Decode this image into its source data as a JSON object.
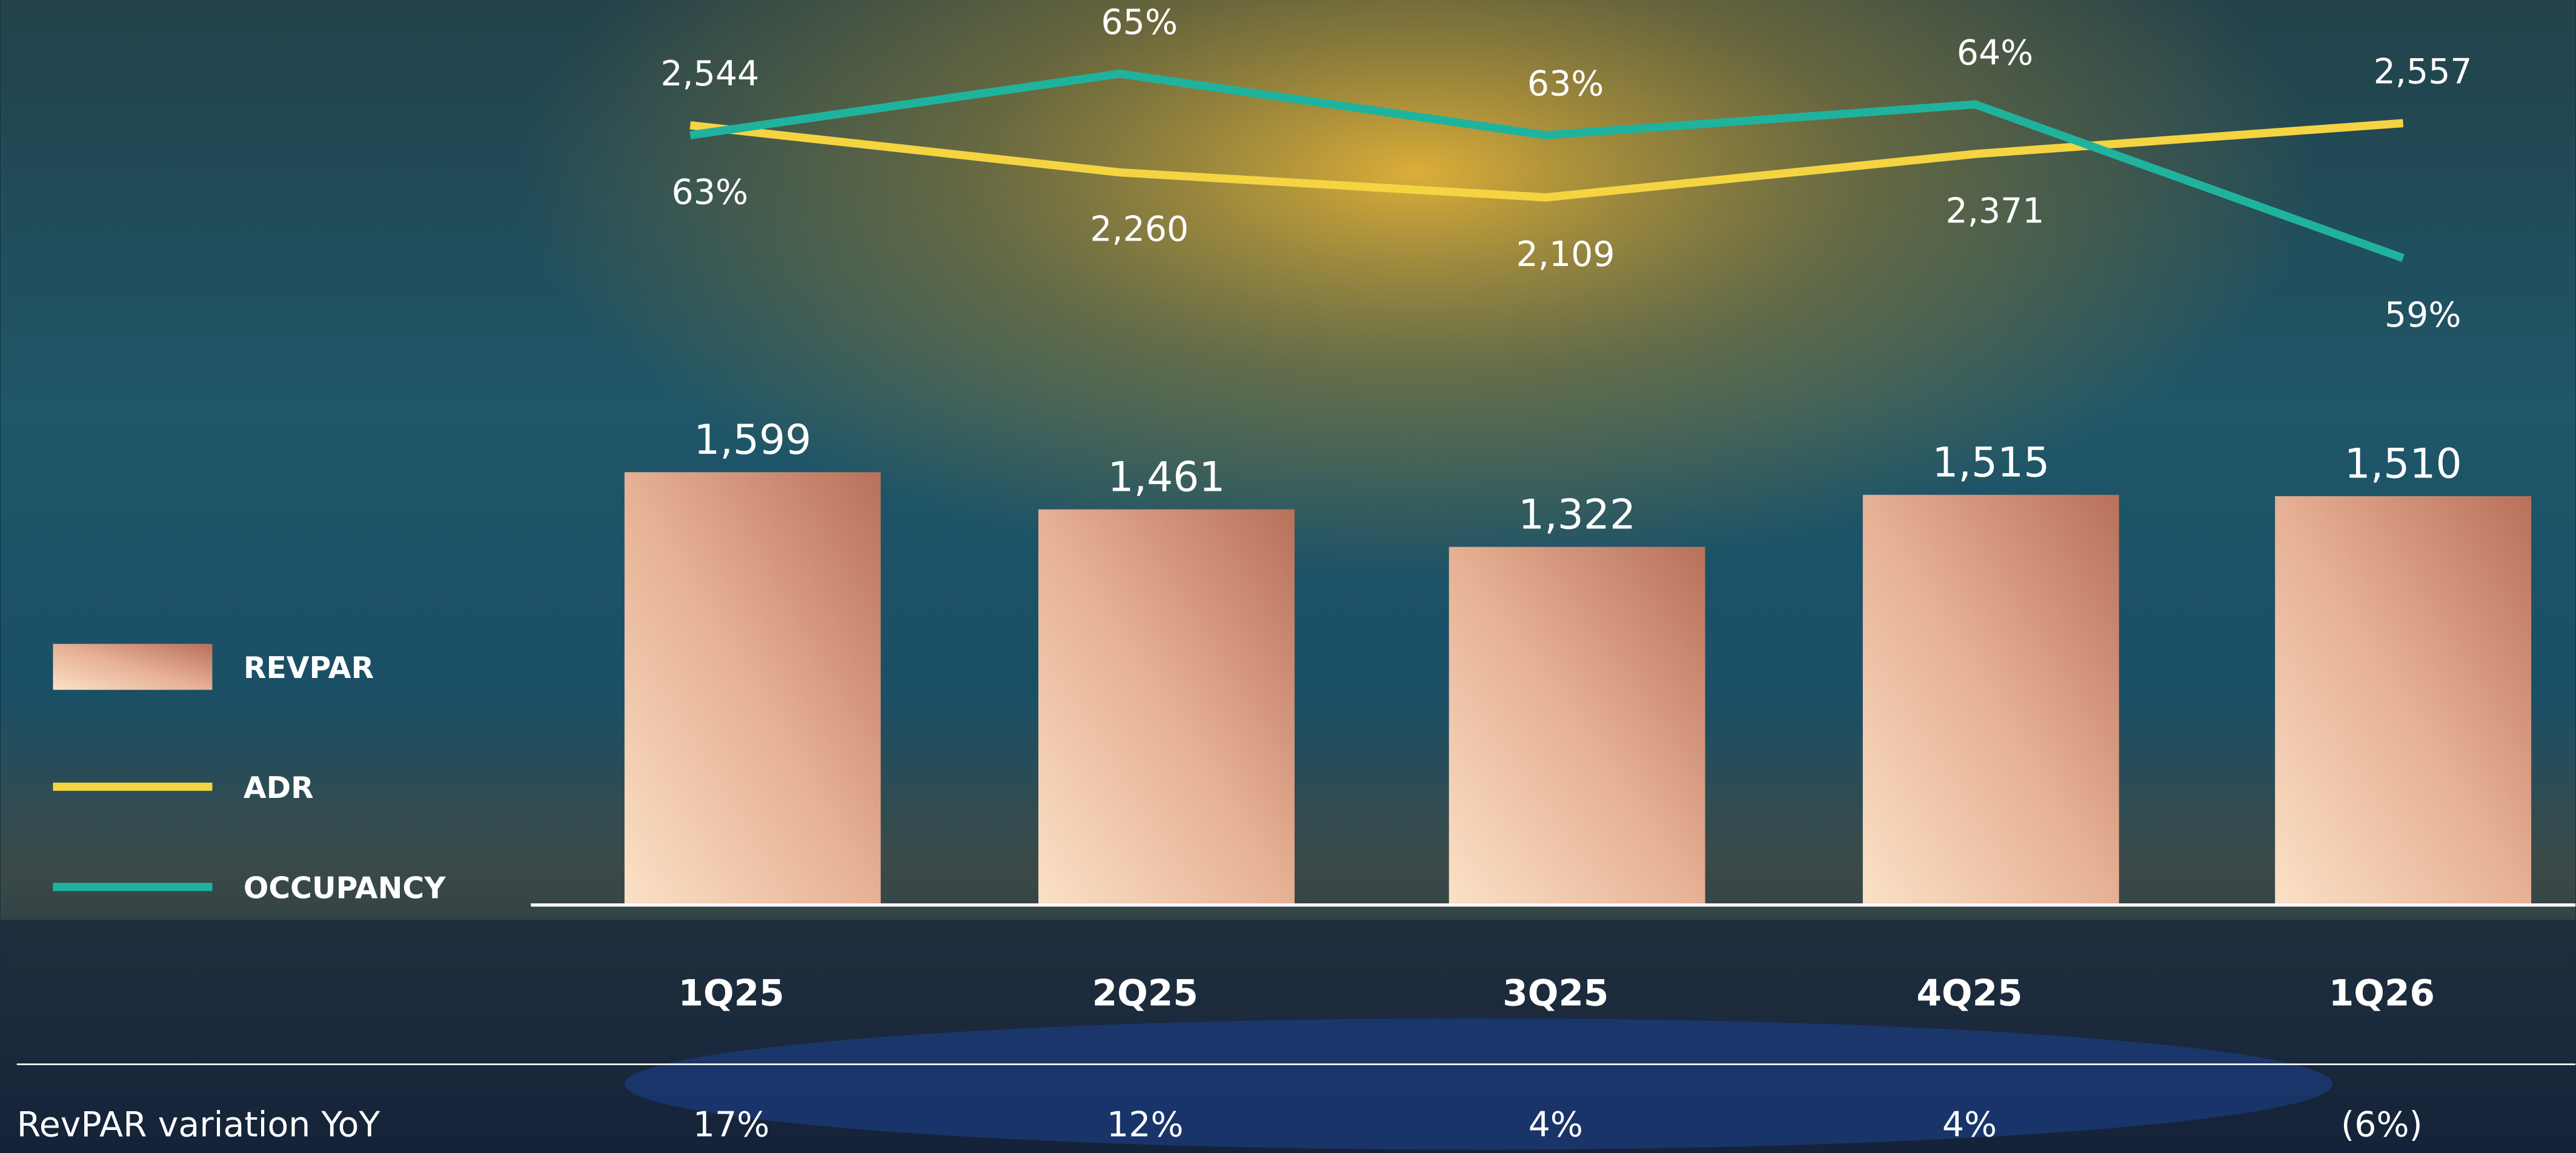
{
  "chart_data": {
    "type": "bar",
    "categories": [
      "1Q25",
      "2Q25",
      "3Q25",
      "4Q25",
      "1Q26"
    ],
    "ylim": [
      0,
      3350
    ],
    "y2lim": [
      -2150,
      3300
    ],
    "y3lim": [
      38,
      67.4
    ],
    "legend": "left",
    "series": [
      {
        "name": "REVPAR",
        "type": "bar",
        "color": "url(#barfill)",
        "values": [
          1599,
          1461,
          1322,
          1515,
          1510
        ],
        "value_labels": [
          "1,599",
          "1,461",
          "1,322",
          "1,515",
          "1,510"
        ]
      },
      {
        "name": "ADR",
        "type": "line",
        "axis": "y2",
        "color": "#f5d442",
        "values": [
          2544,
          2260,
          2109,
          2371,
          2557
        ],
        "value_labels": [
          "2,544",
          "2,260",
          "2,109",
          "2,371",
          "2,557"
        ]
      },
      {
        "name": "OCCUPANCY",
        "type": "line",
        "axis": "y3",
        "color": "#1fb39e",
        "values": [
          63,
          65,
          63,
          64,
          59
        ],
        "value_labels": [
          "63%",
          "65%",
          "63%",
          "64%",
          "59%"
        ]
      }
    ],
    "yoy": {
      "label": "RevPAR variation YoY",
      "values": [
        17,
        12,
        4,
        4,
        -6
      ],
      "value_labels": [
        "17%",
        "12%",
        "4%",
        "4%",
        "(6%)"
      ]
    }
  }
}
